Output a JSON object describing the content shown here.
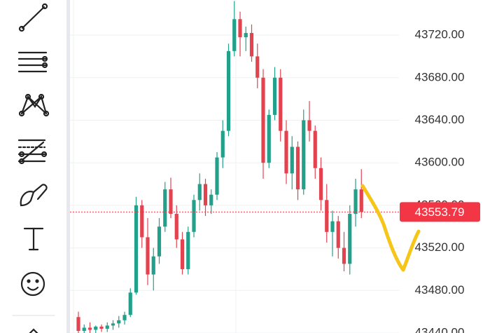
{
  "chart_data": {
    "type": "candlestick",
    "ylim": [
      43440,
      43753
    ],
    "yticks": [
      {
        "value": 43440,
        "label": "43440.00"
      },
      {
        "value": 43480,
        "label": "43480.00"
      },
      {
        "value": 43520,
        "label": "43520.00"
      },
      {
        "value": 43560,
        "label": "43560.00"
      },
      {
        "value": 43600,
        "label": "43600.00"
      },
      {
        "value": 43640,
        "label": "43640.00"
      },
      {
        "value": 43680,
        "label": "43680.00"
      },
      {
        "value": 43720,
        "label": "43720.00"
      }
    ],
    "grid": true,
    "up_color": "#22a08a",
    "down_color": "#e2434f",
    "last_price": 43553.79,
    "last_price_color": "#f23645",
    "open": [
      43455,
      43442,
      43445,
      43443,
      43446,
      43444,
      43447,
      43449,
      43452,
      43457,
      43478,
      43560,
      43530,
      43495,
      43512,
      43540,
      43575,
      43552,
      43528,
      43500,
      43535,
      43565,
      43580,
      43560,
      43570,
      43605,
      43630,
      43705,
      43735,
      43718,
      43722,
      43700,
      43680,
      43600,
      43645,
      43680,
      43630,
      43590,
      43615,
      43575,
      43640,
      43630,
      43595,
      43565,
      43535,
      43545,
      43520,
      43505,
      43552,
      43575
    ],
    "high": [
      43460,
      43448,
      43450,
      43447,
      43448,
      43450,
      43452,
      43456,
      43460,
      43482,
      43568,
      43565,
      43548,
      43520,
      43548,
      43582,
      43586,
      43560,
      43535,
      43540,
      43570,
      43590,
      43585,
      43575,
      43610,
      43640,
      43712,
      43752,
      43742,
      43728,
      43730,
      43712,
      43688,
      43650,
      43690,
      43688,
      43640,
      43625,
      43620,
      43650,
      43658,
      43635,
      43605,
      43580,
      43555,
      43550,
      43535,
      43560,
      43585,
      43594
    ],
    "low": [
      43440,
      43440,
      43440,
      43440,
      43441,
      43441,
      43443,
      43445,
      43448,
      43455,
      43476,
      43520,
      43485,
      43480,
      43505,
      43535,
      43548,
      43520,
      43495,
      43495,
      43530,
      43555,
      43550,
      43552,
      43565,
      43595,
      43625,
      43700,
      43700,
      43705,
      43695,
      43670,
      43585,
      43595,
      43640,
      43620,
      43580,
      43575,
      43565,
      43570,
      43620,
      43585,
      43555,
      43525,
      43512,
      43510,
      43498,
      43495,
      43540,
      43548
    ],
    "close": [
      43442,
      43445,
      43443,
      43446,
      43444,
      43447,
      43449,
      43452,
      43457,
      43478,
      43560,
      43530,
      43495,
      43512,
      43540,
      43575,
      43552,
      43528,
      43500,
      43535,
      43565,
      43580,
      43560,
      43570,
      43605,
      43630,
      43705,
      43735,
      43718,
      43722,
      43700,
      43680,
      43600,
      43645,
      43680,
      43630,
      43590,
      43615,
      43575,
      43640,
      43630,
      43595,
      43565,
      43535,
      43545,
      43520,
      43505,
      43552,
      43575,
      43553.79
    ]
  }
}
